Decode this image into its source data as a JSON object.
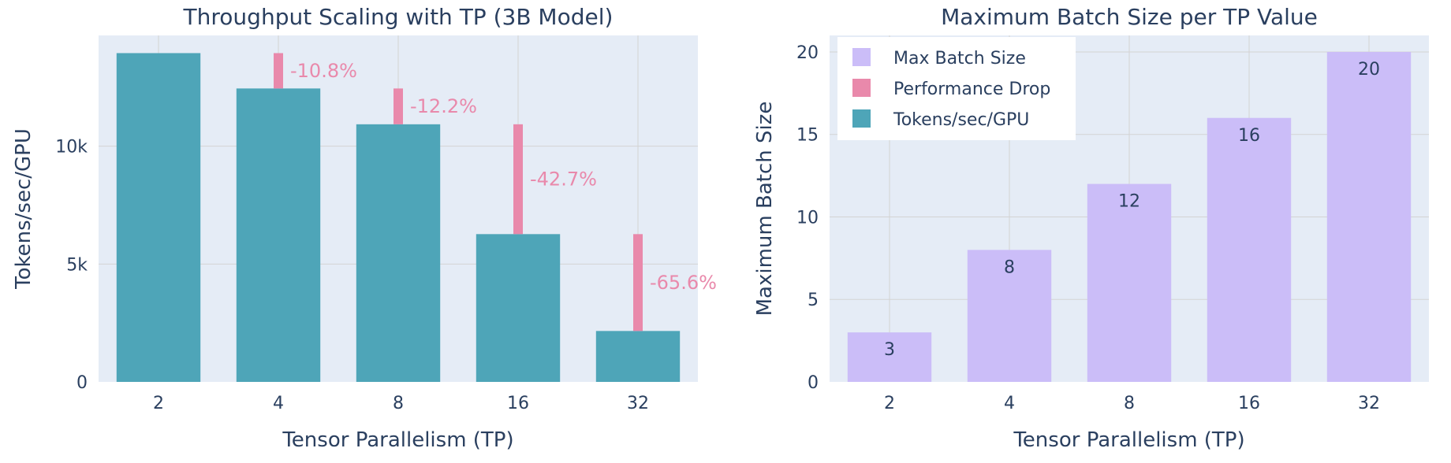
{
  "colors": {
    "plot_bg": "#e5ecf6",
    "grid": "#d3d3d3",
    "tokens": "#4ea5b8",
    "drop": "#e989ab",
    "batch": "#cbbdf8",
    "text": "#2a3f5f"
  },
  "legend": {
    "items": [
      {
        "label": "Max Batch Size",
        "color": "#cbbdf8"
      },
      {
        "label": "Performance Drop",
        "color": "#e989ab"
      },
      {
        "label": "Tokens/sec/GPU",
        "color": "#4ea5b8"
      }
    ]
  },
  "chart_data": [
    {
      "type": "bar",
      "title": "Throughput Scaling with TP (3B Model)",
      "xlabel": "Tensor Parallelism (TP)",
      "ylabel": "Tokens/sec/GPU",
      "categories": [
        "2",
        "4",
        "8",
        "16",
        "32"
      ],
      "ylim": [
        0,
        14700
      ],
      "yticks": [
        0,
        5000,
        10000
      ],
      "ytick_labels": [
        "0",
        "5k",
        "10k"
      ],
      "series": [
        {
          "name": "Tokens/sec/GPU",
          "values": [
            13950,
            12450,
            10930,
            6270,
            2160
          ]
        }
      ],
      "performance_drop": {
        "name": "Performance Drop",
        "ranges": [
          {
            "category": "4",
            "from": 13950,
            "to": 12450,
            "label": "-10.8%"
          },
          {
            "category": "8",
            "from": 12450,
            "to": 10930,
            "label": "-12.2%"
          },
          {
            "category": "16",
            "from": 10930,
            "to": 6270,
            "label": "-42.7%"
          },
          {
            "category": "32",
            "from": 6270,
            "to": 2160,
            "label": "-65.6%"
          }
        ]
      },
      "grid": true
    },
    {
      "type": "bar",
      "title": "Maximum Batch Size per TP Value",
      "xlabel": "Tensor Parallelism (TP)",
      "ylabel": "Maximum Batch Size",
      "categories": [
        "2",
        "4",
        "8",
        "16",
        "32"
      ],
      "ylim": [
        0,
        21
      ],
      "yticks": [
        0,
        5,
        10,
        15,
        20
      ],
      "ytick_labels": [
        "0",
        "5",
        "10",
        "15",
        "20"
      ],
      "series": [
        {
          "name": "Max Batch Size",
          "values": [
            3,
            8,
            12,
            16,
            20
          ],
          "labels": [
            "3",
            "8",
            "12",
            "16",
            "20"
          ]
        }
      ],
      "legend_position": "top-left",
      "grid": true
    }
  ]
}
